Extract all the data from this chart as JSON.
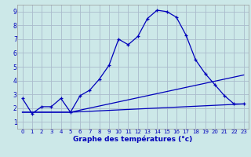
{
  "xlabel": "Graphe des températures (°c)",
  "bg_color": "#cce8e8",
  "grid_color": "#aabbcc",
  "line_color": "#0000bb",
  "xlim": [
    -0.5,
    23.5
  ],
  "ylim": [
    0.5,
    9.5
  ],
  "xticks": [
    0,
    1,
    2,
    3,
    4,
    5,
    6,
    7,
    8,
    9,
    10,
    11,
    12,
    13,
    14,
    15,
    16,
    17,
    18,
    19,
    20,
    21,
    22,
    23
  ],
  "yticks": [
    1,
    2,
    3,
    4,
    5,
    6,
    7,
    8,
    9
  ],
  "series1_x": [
    0,
    1,
    2,
    3,
    4,
    5,
    6,
    7,
    8,
    9,
    10,
    11,
    12,
    13,
    14,
    15,
    16,
    17,
    18,
    19,
    20,
    21,
    22,
    23
  ],
  "series1_y": [
    2.7,
    1.6,
    2.1,
    2.1,
    2.7,
    1.7,
    2.9,
    3.3,
    4.1,
    5.1,
    7.0,
    6.6,
    7.2,
    8.5,
    9.1,
    9.0,
    8.6,
    7.3,
    5.5,
    4.5,
    3.7,
    2.9,
    2.3,
    2.3
  ],
  "series2_x": [
    0,
    5,
    23
  ],
  "series2_y": [
    1.7,
    1.7,
    2.3
  ],
  "series3_x": [
    0,
    5,
    23
  ],
  "series3_y": [
    1.7,
    1.7,
    4.4
  ]
}
